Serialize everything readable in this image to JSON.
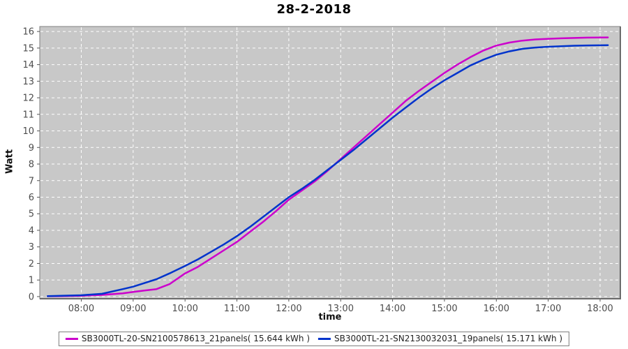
{
  "chart_data": {
    "type": "line",
    "title": "28-2-2018",
    "xlabel": "time",
    "ylabel": "Watt",
    "xlim": [
      7.2,
      18.39
    ],
    "ylim": [
      -0.13,
      16.3
    ],
    "grid": "white-dashed",
    "plot_bg": "#c8c8c8",
    "plot_border": "#7f7f7f",
    "grid_color": "#ffffff",
    "tick_label_color": "#4d4d4d",
    "legend_position": "bottom",
    "x_ticks": [
      {
        "value": 8,
        "label": "08:00"
      },
      {
        "value": 9,
        "label": "09:00"
      },
      {
        "value": 10,
        "label": "10:00"
      },
      {
        "value": 11,
        "label": "11:00"
      },
      {
        "value": 12,
        "label": "12:00"
      },
      {
        "value": 13,
        "label": "13:00"
      },
      {
        "value": 14,
        "label": "14:00"
      },
      {
        "value": 15,
        "label": "15:00"
      },
      {
        "value": 16,
        "label": "16:00"
      },
      {
        "value": 17,
        "label": "17:00"
      },
      {
        "value": 18,
        "label": "18:00"
      }
    ],
    "y_ticks": [
      0,
      1,
      2,
      3,
      4,
      5,
      6,
      7,
      8,
      9,
      10,
      11,
      12,
      13,
      14,
      15,
      16
    ],
    "series": [
      {
        "name": "SB3000TL-20-SN2100578613_21panels( 15.644 kWh )",
        "color": "#cc00cc",
        "total_kwh": "15.644",
        "points": [
          [
            7.35,
            0.02
          ],
          [
            7.6,
            0.03
          ],
          [
            8.0,
            0.05
          ],
          [
            8.4,
            0.1
          ],
          [
            8.8,
            0.2
          ],
          [
            9.0,
            0.28
          ],
          [
            9.2,
            0.36
          ],
          [
            9.45,
            0.45
          ],
          [
            9.7,
            0.75
          ],
          [
            10.0,
            1.4
          ],
          [
            10.25,
            1.8
          ],
          [
            10.5,
            2.3
          ],
          [
            10.75,
            2.8
          ],
          [
            11.0,
            3.3
          ],
          [
            11.25,
            3.9
          ],
          [
            11.5,
            4.5
          ],
          [
            11.75,
            5.15
          ],
          [
            12.0,
            5.85
          ],
          [
            12.25,
            6.4
          ],
          [
            12.5,
            6.95
          ],
          [
            12.75,
            7.6
          ],
          [
            13.0,
            8.3
          ],
          [
            13.25,
            9.0
          ],
          [
            13.5,
            9.7
          ],
          [
            13.75,
            10.4
          ],
          [
            14.0,
            11.1
          ],
          [
            14.25,
            11.8
          ],
          [
            14.5,
            12.4
          ],
          [
            14.75,
            12.95
          ],
          [
            15.0,
            13.5
          ],
          [
            15.25,
            14.0
          ],
          [
            15.5,
            14.45
          ],
          [
            15.75,
            14.85
          ],
          [
            16.0,
            15.15
          ],
          [
            16.25,
            15.33
          ],
          [
            16.5,
            15.45
          ],
          [
            16.75,
            15.52
          ],
          [
            17.0,
            15.56
          ],
          [
            17.25,
            15.59
          ],
          [
            17.5,
            15.61
          ],
          [
            17.75,
            15.63
          ],
          [
            18.15,
            15.644
          ]
        ]
      },
      {
        "name": "SB3000TL-21-SN2130032031_19panels( 15.171 kWh )",
        "color": "#0033cc",
        "total_kwh": "15.171",
        "points": [
          [
            7.35,
            0.03
          ],
          [
            7.6,
            0.05
          ],
          [
            8.0,
            0.08
          ],
          [
            8.4,
            0.17
          ],
          [
            8.8,
            0.45
          ],
          [
            9.0,
            0.6
          ],
          [
            9.2,
            0.8
          ],
          [
            9.45,
            1.05
          ],
          [
            9.7,
            1.4
          ],
          [
            10.0,
            1.85
          ],
          [
            10.25,
            2.25
          ],
          [
            10.5,
            2.7
          ],
          [
            10.75,
            3.15
          ],
          [
            11.0,
            3.65
          ],
          [
            11.25,
            4.2
          ],
          [
            11.5,
            4.8
          ],
          [
            11.75,
            5.4
          ],
          [
            12.0,
            6.0
          ],
          [
            12.25,
            6.5
          ],
          [
            12.5,
            7.05
          ],
          [
            12.75,
            7.65
          ],
          [
            13.0,
            8.25
          ],
          [
            13.25,
            8.85
          ],
          [
            13.5,
            9.5
          ],
          [
            13.75,
            10.15
          ],
          [
            14.0,
            10.8
          ],
          [
            14.25,
            11.4
          ],
          [
            14.5,
            12.0
          ],
          [
            14.75,
            12.55
          ],
          [
            15.0,
            13.05
          ],
          [
            15.25,
            13.5
          ],
          [
            15.5,
            13.95
          ],
          [
            15.75,
            14.3
          ],
          [
            16.0,
            14.6
          ],
          [
            16.25,
            14.8
          ],
          [
            16.5,
            14.95
          ],
          [
            16.75,
            15.03
          ],
          [
            17.0,
            15.08
          ],
          [
            17.25,
            15.11
          ],
          [
            17.5,
            15.14
          ],
          [
            17.75,
            15.16
          ],
          [
            18.15,
            15.171
          ]
        ]
      }
    ]
  }
}
